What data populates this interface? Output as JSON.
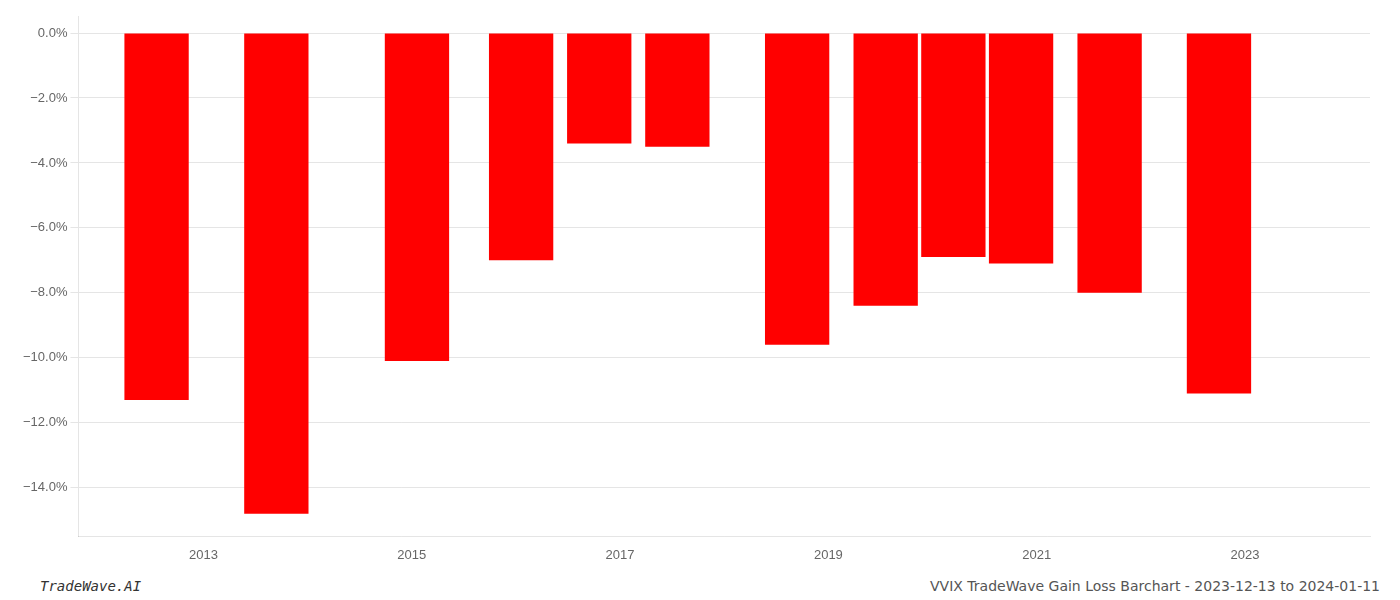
{
  "chart_data": {
    "type": "bar",
    "x": [
      2012.55,
      2013.7,
      2015.05,
      2016.05,
      2016.8,
      2017.55,
      2018.7,
      2019.55,
      2020.2,
      2020.85,
      2021.7,
      2022.75
    ],
    "values": [
      -11.3,
      -14.8,
      -10.1,
      -7.0,
      -3.4,
      -3.5,
      -9.6,
      -8.4,
      -6.9,
      -7.1,
      -8.0,
      -11.1
    ],
    "color": "#ff0000",
    "xlim": [
      2011.8,
      2024.2
    ],
    "xticks": [
      2013,
      2015,
      2017,
      2019,
      2021,
      2023
    ],
    "ylim": [
      -15.5,
      0.5
    ],
    "yticks": [
      {
        "value": 0.0,
        "label": "0.0%"
      },
      {
        "value": -2.0,
        "label": "−2.0%"
      },
      {
        "value": -4.0,
        "label": "−4.0%"
      },
      {
        "value": -6.0,
        "label": "−6.0%"
      },
      {
        "value": -8.0,
        "label": "−8.0%"
      },
      {
        "value": -10.0,
        "label": "−10.0%"
      },
      {
        "value": -12.0,
        "label": "−12.0%"
      },
      {
        "value": -14.0,
        "label": "−14.0%"
      }
    ],
    "grid": true,
    "annotations": [
      "TradeWave.AI",
      "VVIX TradeWave Gain Loss Barchart - 2023-12-13 to 2024-01-11"
    ]
  }
}
